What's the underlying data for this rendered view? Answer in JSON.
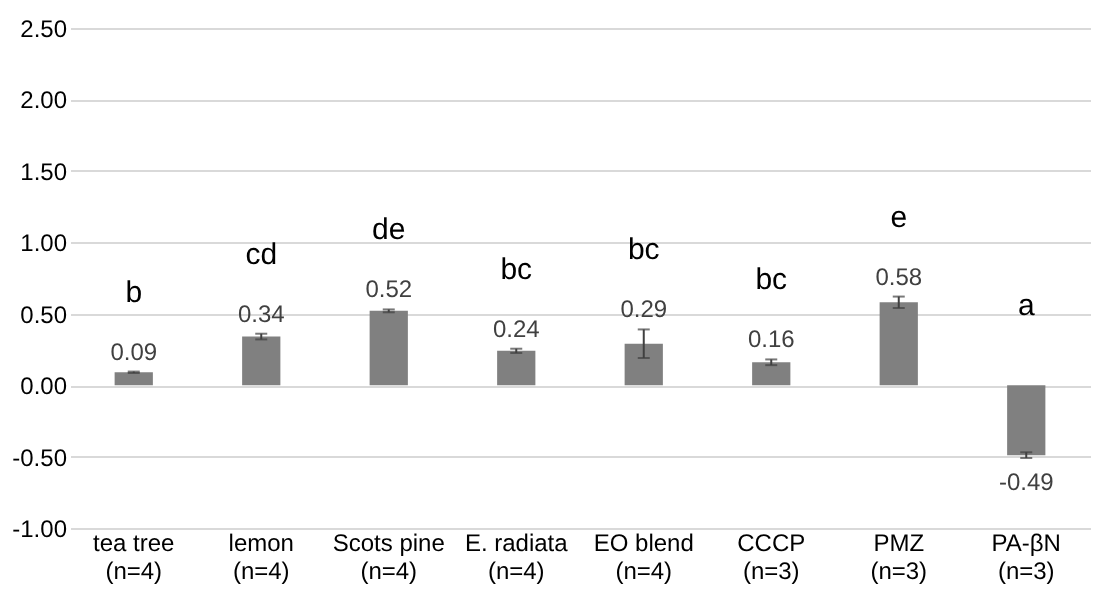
{
  "chart_data": {
    "type": "bar",
    "categories": [
      "tea tree (n=4)",
      "lemon (n=4)",
      "Scots pine (n=4)",
      "E. radiata (n=4)",
      "EO blend (n=4)",
      "CCCP (n=3)",
      "PMZ (n=3)",
      "PA-βN (n=3)"
    ],
    "values": [
      0.09,
      0.34,
      0.52,
      0.24,
      0.29,
      0.16,
      0.58,
      -0.49
    ],
    "errors": [
      0.005,
      0.02,
      0.01,
      0.015,
      0.1,
      0.02,
      0.04,
      0.02
    ],
    "color": "#808080",
    "data_labels": true,
    "ylim": [
      -1.0,
      2.5
    ],
    "yticks": [
      {
        "value": -1.0,
        "label": "-1.00"
      },
      {
        "value": -0.5,
        "label": "-0.50"
      },
      {
        "value": 0,
        "label": "0.00"
      },
      {
        "value": 0.5,
        "label": "0.50"
      },
      {
        "value": 1.0,
        "label": "1.00"
      },
      {
        "value": 1.5,
        "label": "1.50"
      },
      {
        "value": 2.0,
        "label": "2.00"
      },
      {
        "value": 2.5,
        "label": "2.50"
      }
    ],
    "grid": "y",
    "annotations": [
      "b",
      "cd",
      "de",
      "bc",
      "bc",
      "bc",
      "e",
      "a"
    ]
  }
}
